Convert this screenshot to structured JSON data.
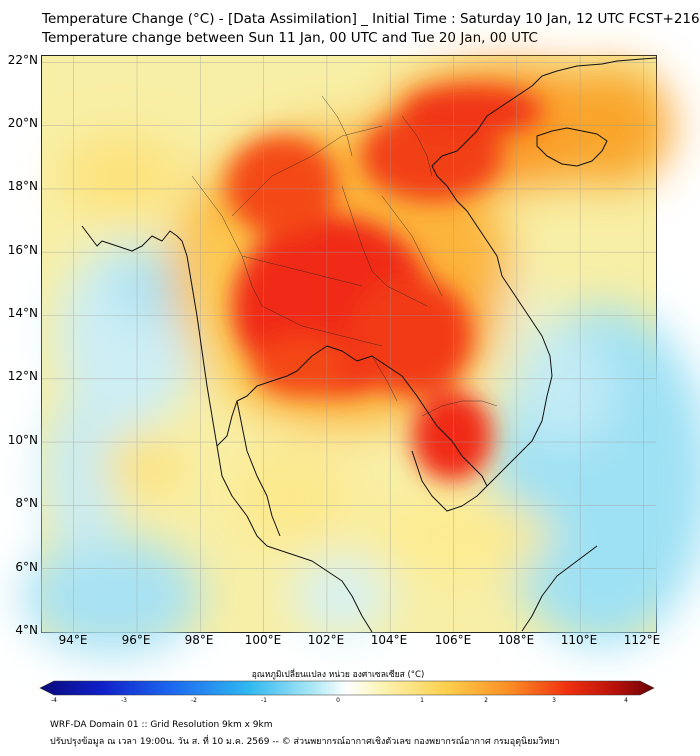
{
  "title_line1": "Temperature Change (°C) - [Data Assimilation] _ Initial Time : Saturday 10 Jan, 12 UTC FCST+216",
  "title_line2": "Temperature change between Sun 11 Jan, 00 UTC and Tue 20 Jan, 00 UTC",
  "map": {
    "lat_labels": [
      "22°N",
      "20°N",
      "18°N",
      "16°N",
      "14°N",
      "12°N",
      "10°N",
      "8°N",
      "6°N",
      "4°N"
    ],
    "lon_labels": [
      "94°E",
      "96°E",
      "98°E",
      "100°E",
      "102°E",
      "104°E",
      "106°E",
      "108°E",
      "110°E",
      "112°E"
    ],
    "lat_range": [
      4,
      22.2
    ],
    "lon_range": [
      93,
      112.4
    ]
  },
  "colorbar": {
    "title": "อุณหภูมิเปลี่ยนแปลง หน่วย องศาเซลเซียส (°C)",
    "tick_labels": [
      "-4",
      "-3",
      "-2",
      "-1",
      "0",
      "1",
      "2",
      "3",
      "4"
    ],
    "range": [
      -4,
      4
    ]
  },
  "footer_line1": "WRF-DA Domain 01 :: Grid Resolution 9km x 9km",
  "footer_line2": "ปรับปรุงข้อมูล ณ เวลา 19:00น. วัน ส. ที่ 10 ม.ค. 2569 -- © ส่วนพยากรณ์อากาศเชิงตัวเลข กองพยากรณ์อากาศ กรมอุตุนิยมวิทยา"
}
